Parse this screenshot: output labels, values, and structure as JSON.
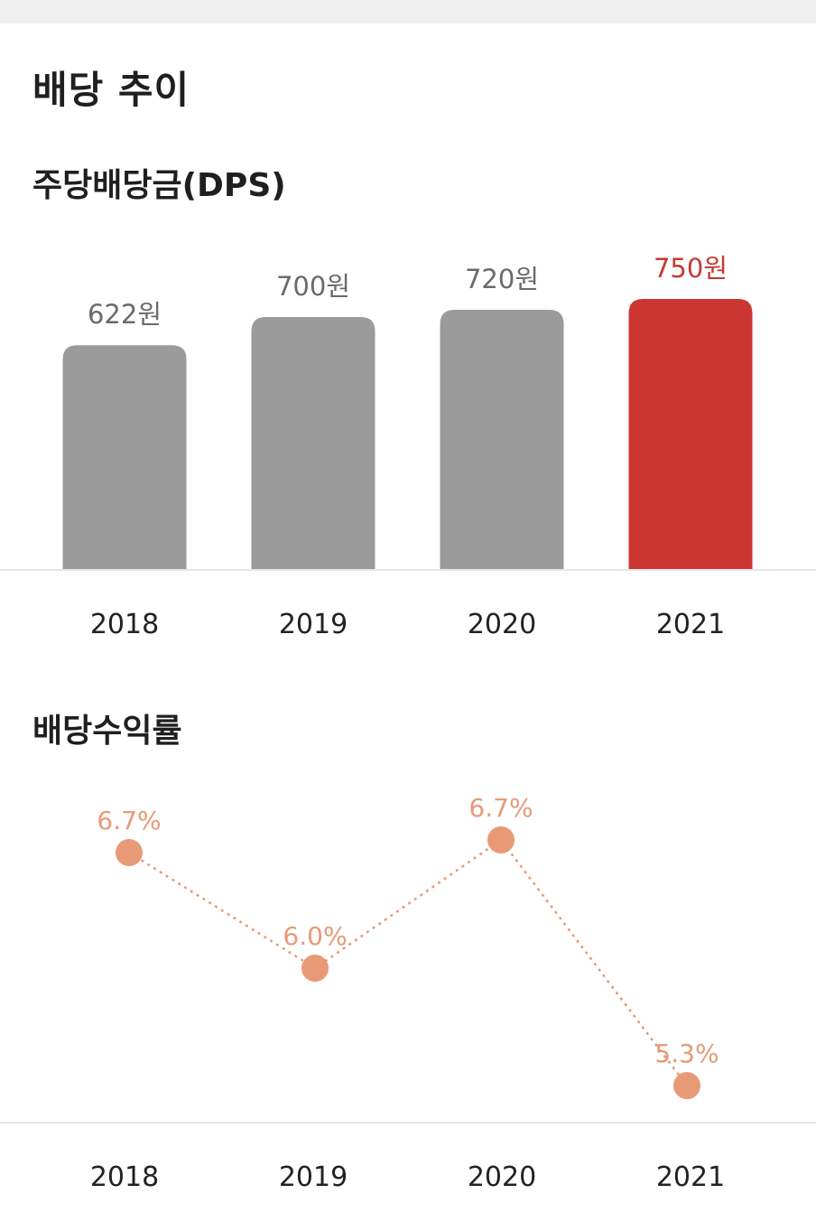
{
  "header": {
    "title": "배당 추이"
  },
  "colors": {
    "bar_default": "#9b9b9b",
    "bar_highlight": "#cc3632",
    "label_default": "#6a6a6a",
    "label_highlight": "#c43a33",
    "line": "#e89a76",
    "axis": "#e6e6e6"
  },
  "chart_data": [
    {
      "type": "bar",
      "title": "주당배당금(DPS)",
      "categories": [
        "2018",
        "2019",
        "2020",
        "2021"
      ],
      "values": [
        622,
        700,
        720,
        750
      ],
      "labels": [
        "622원",
        "700원",
        "720원",
        "750원"
      ],
      "highlight_index": 3,
      "ylim": [
        0,
        750
      ],
      "grid": false
    },
    {
      "type": "line",
      "title": "배당수익률",
      "categories": [
        "2018",
        "2019",
        "2020",
        "2021"
      ],
      "values": [
        6.7,
        6.0,
        6.7,
        5.3
      ],
      "labels": [
        "6.7%",
        "6.0%",
        "6.7%",
        "5.3%"
      ],
      "line_style": "dotted",
      "grid": false
    }
  ]
}
